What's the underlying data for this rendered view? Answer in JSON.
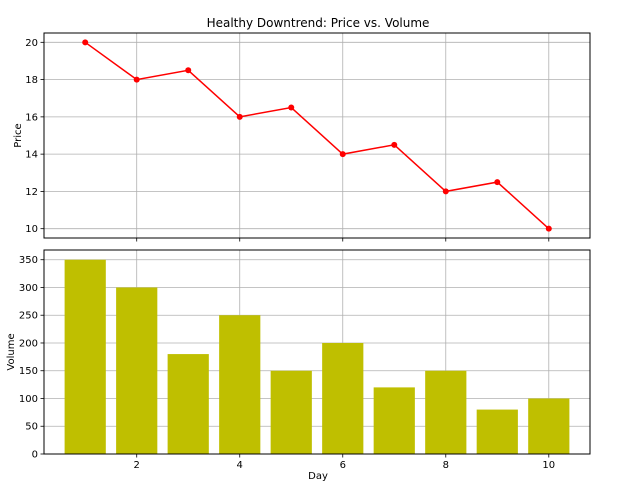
{
  "chart_data": {
    "title": "Healthy Downtrend: Price vs. Volume",
    "xlabel": "Day",
    "x": [
      1,
      2,
      3,
      4,
      5,
      6,
      7,
      8,
      9,
      10
    ],
    "xticks": [
      2,
      4,
      6,
      8,
      10
    ],
    "xlim": [
      0.2,
      10.8
    ],
    "grid": true,
    "panels": [
      {
        "type": "line",
        "ylabel": "Price",
        "ylim": [
          9.5,
          20.5
        ],
        "yticks": [
          10,
          12,
          14,
          16,
          18,
          20
        ],
        "color": "#ff0000",
        "values": [
          20,
          18,
          18.5,
          16,
          16.5,
          14,
          14.5,
          12,
          12.5,
          10
        ]
      },
      {
        "type": "bar",
        "ylabel": "Volume",
        "ylim": [
          0,
          367.5
        ],
        "yticks": [
          0,
          50,
          100,
          150,
          200,
          250,
          300,
          350
        ],
        "color": "#bfbf00",
        "values": [
          350,
          300,
          180,
          250,
          150,
          200,
          120,
          150,
          80,
          100
        ]
      }
    ]
  }
}
